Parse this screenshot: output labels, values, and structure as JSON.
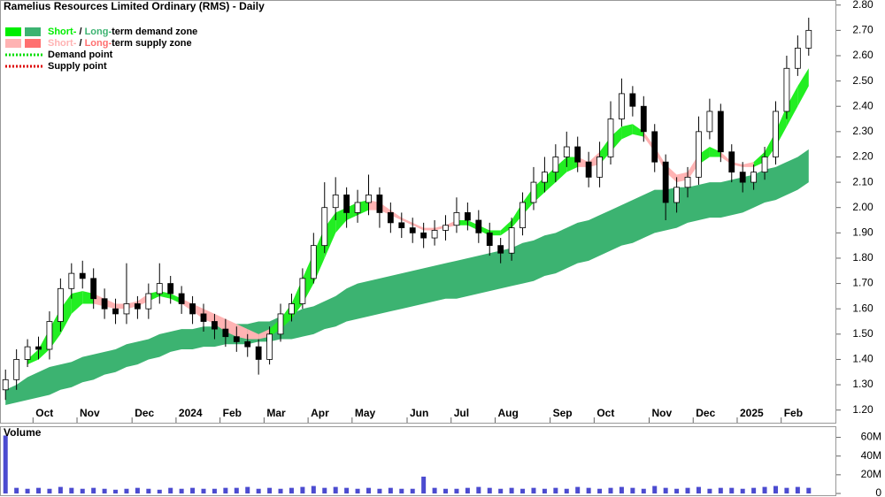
{
  "chart_data": [
    {
      "type": "candlestick",
      "title": "Ramelius Resources Limited Ordinary (RMS) - Daily",
      "categories": [
        null,
        null,
        null,
        "Oct",
        null,
        null,
        null,
        "Nov",
        null,
        null,
        null,
        null,
        "Dec",
        null,
        null,
        null,
        "2024",
        null,
        null,
        null,
        "Feb",
        null,
        null,
        null,
        "Mar",
        null,
        null,
        null,
        "Apr",
        null,
        null,
        null,
        "May",
        null,
        null,
        null,
        null,
        "Jun",
        null,
        null,
        null,
        "Jul",
        null,
        null,
        null,
        "Aug",
        null,
        null,
        null,
        null,
        "Sep",
        null,
        null,
        null,
        "Oct",
        null,
        null,
        null,
        null,
        "Nov",
        null,
        null,
        null,
        "Dec",
        null,
        null,
        null,
        "2025",
        null,
        null,
        null,
        "Feb",
        null,
        null
      ],
      "open": [
        1.28,
        1.32,
        1.4,
        1.45,
        1.44,
        1.55,
        1.68,
        1.74,
        1.72,
        1.64,
        1.6,
        1.58,
        1.62,
        1.6,
        1.66,
        1.7,
        1.66,
        1.62,
        1.58,
        1.55,
        1.52,
        1.49,
        1.47,
        1.45,
        1.4,
        1.5,
        1.58,
        1.62,
        1.72,
        1.85,
        2.0,
        2.05,
        1.98,
        2.02,
        2.05,
        1.98,
        1.94,
        1.92,
        1.9,
        1.88,
        1.91,
        1.93,
        1.98,
        1.95,
        1.9,
        1.85,
        1.82,
        1.92,
        2.02,
        2.1,
        2.14,
        2.2,
        2.24,
        2.18,
        2.12,
        2.2,
        2.35,
        2.45,
        2.4,
        2.3,
        2.18,
        2.02,
        2.08,
        2.12,
        2.3,
        2.38,
        2.22,
        2.14,
        2.1,
        2.14,
        2.2,
        2.38,
        2.55,
        2.63
      ],
      "high": [
        1.36,
        1.44,
        1.48,
        1.49,
        1.59,
        1.72,
        1.78,
        1.79,
        1.76,
        1.68,
        1.64,
        1.78,
        1.65,
        1.7,
        1.78,
        1.73,
        1.69,
        1.65,
        1.62,
        1.58,
        1.56,
        1.53,
        1.5,
        1.48,
        1.53,
        1.62,
        1.66,
        1.76,
        1.9,
        2.1,
        2.12,
        2.08,
        2.07,
        2.13,
        2.08,
        2.02,
        1.98,
        1.96,
        1.94,
        1.95,
        1.97,
        2.04,
        2.02,
        1.99,
        1.94,
        1.88,
        1.96,
        2.06,
        2.16,
        2.2,
        2.25,
        2.3,
        2.28,
        2.22,
        2.26,
        2.42,
        2.51,
        2.48,
        2.44,
        2.33,
        2.21,
        2.12,
        2.16,
        2.36,
        2.43,
        2.41,
        2.25,
        2.18,
        2.17,
        2.24,
        2.42,
        2.6,
        2.68,
        2.75
      ],
      "low": [
        1.24,
        1.28,
        1.37,
        1.4,
        1.4,
        1.51,
        1.64,
        1.68,
        1.6,
        1.56,
        1.54,
        1.54,
        1.56,
        1.56,
        1.62,
        1.62,
        1.58,
        1.54,
        1.51,
        1.48,
        1.45,
        1.43,
        1.41,
        1.34,
        1.38,
        1.47,
        1.55,
        1.6,
        1.7,
        1.82,
        1.95,
        1.92,
        1.94,
        1.97,
        1.92,
        1.9,
        1.88,
        1.86,
        1.84,
        1.85,
        1.87,
        1.9,
        1.91,
        1.86,
        1.81,
        1.78,
        1.79,
        1.89,
        1.99,
        2.06,
        2.1,
        2.16,
        2.14,
        2.08,
        2.08,
        2.17,
        2.32,
        2.36,
        2.26,
        2.14,
        1.95,
        1.98,
        2.04,
        2.09,
        2.27,
        2.18,
        2.1,
        2.06,
        2.07,
        2.11,
        2.17,
        2.35,
        2.52,
        2.6
      ],
      "close": [
        1.32,
        1.4,
        1.45,
        1.44,
        1.55,
        1.68,
        1.74,
        1.72,
        1.64,
        1.6,
        1.58,
        1.62,
        1.6,
        1.66,
        1.7,
        1.66,
        1.62,
        1.58,
        1.55,
        1.52,
        1.49,
        1.47,
        1.45,
        1.4,
        1.5,
        1.58,
        1.62,
        1.72,
        1.85,
        2.0,
        2.05,
        1.98,
        2.02,
        2.05,
        1.98,
        1.94,
        1.92,
        1.9,
        1.88,
        1.91,
        1.93,
        1.98,
        1.95,
        1.9,
        1.85,
        1.82,
        1.92,
        2.02,
        2.1,
        2.14,
        2.2,
        2.24,
        2.18,
        2.12,
        2.2,
        2.35,
        2.45,
        2.4,
        2.3,
        2.18,
        2.02,
        2.08,
        2.12,
        2.3,
        2.38,
        2.22,
        2.14,
        2.1,
        2.14,
        2.2,
        2.38,
        2.55,
        2.63,
        2.7
      ],
      "up_color": "#ffffff",
      "down_color": "#000000",
      "long_zone": {
        "color": "#3cb371",
        "upper": [
          1.28,
          1.3,
          1.33,
          1.35,
          1.37,
          1.38,
          1.39,
          1.41,
          1.42,
          1.43,
          1.44,
          1.46,
          1.47,
          1.48,
          1.5,
          1.51,
          1.52,
          1.52,
          1.53,
          1.53,
          1.54,
          1.54,
          1.54,
          1.55,
          1.55,
          1.57,
          1.58,
          1.6,
          1.61,
          1.63,
          1.65,
          1.68,
          1.7,
          1.71,
          1.72,
          1.73,
          1.74,
          1.75,
          1.76,
          1.77,
          1.78,
          1.79,
          1.8,
          1.81,
          1.82,
          1.83,
          1.84,
          1.86,
          1.87,
          1.89,
          1.9,
          1.92,
          1.94,
          1.95,
          1.97,
          1.99,
          2.01,
          2.03,
          2.05,
          2.07,
          2.07,
          2.08,
          2.08,
          2.09,
          2.1,
          2.1,
          2.11,
          2.12,
          2.13,
          2.15,
          2.16,
          2.18,
          2.2,
          2.23
        ],
        "lower": [
          1.22,
          1.23,
          1.24,
          1.25,
          1.26,
          1.28,
          1.29,
          1.31,
          1.32,
          1.34,
          1.35,
          1.37,
          1.38,
          1.4,
          1.41,
          1.43,
          1.44,
          1.44,
          1.45,
          1.45,
          1.46,
          1.46,
          1.46,
          1.47,
          1.47,
          1.48,
          1.48,
          1.49,
          1.5,
          1.52,
          1.53,
          1.55,
          1.56,
          1.57,
          1.58,
          1.59,
          1.6,
          1.61,
          1.62,
          1.63,
          1.64,
          1.64,
          1.65,
          1.66,
          1.67,
          1.68,
          1.69,
          1.7,
          1.71,
          1.73,
          1.74,
          1.76,
          1.78,
          1.79,
          1.81,
          1.83,
          1.85,
          1.86,
          1.88,
          1.9,
          1.91,
          1.92,
          1.94,
          1.95,
          1.96,
          1.96,
          1.97,
          1.98,
          2.0,
          2.02,
          2.03,
          2.05,
          2.07,
          2.1
        ]
      },
      "short_zone": {
        "upper": [
          null,
          null,
          1.4,
          1.44,
          1.52,
          1.6,
          1.66,
          1.67,
          1.66,
          1.64,
          1.62,
          1.62,
          1.63,
          1.66,
          1.67,
          1.66,
          1.64,
          1.62,
          1.6,
          1.58,
          1.56,
          1.54,
          1.52,
          1.5,
          1.52,
          1.56,
          1.62,
          1.72,
          1.82,
          1.92,
          1.98,
          2.0,
          2.02,
          2.03,
          2.02,
          1.99,
          1.96,
          1.94,
          1.92,
          1.92,
          1.93,
          1.95,
          1.95,
          1.93,
          1.91,
          1.91,
          1.95,
          2.02,
          2.08,
          2.12,
          2.16,
          2.2,
          2.2,
          2.18,
          2.22,
          2.28,
          2.32,
          2.33,
          2.3,
          2.24,
          2.17,
          2.13,
          2.14,
          2.21,
          2.24,
          2.22,
          2.18,
          2.17,
          2.18,
          2.22,
          2.3,
          2.4,
          2.48,
          2.55
        ],
        "lower": [
          null,
          null,
          1.38,
          1.4,
          1.44,
          1.5,
          1.58,
          1.62,
          1.62,
          1.61,
          1.6,
          1.6,
          1.61,
          1.63,
          1.65,
          1.64,
          1.62,
          1.59,
          1.56,
          1.54,
          1.51,
          1.49,
          1.48,
          1.48,
          1.49,
          1.52,
          1.56,
          1.62,
          1.7,
          1.8,
          1.9,
          1.95,
          1.97,
          1.99,
          1.99,
          1.97,
          1.95,
          1.93,
          1.91,
          1.91,
          1.92,
          1.93,
          1.93,
          1.91,
          1.89,
          1.89,
          1.92,
          1.97,
          2.02,
          2.06,
          2.1,
          2.14,
          2.16,
          2.16,
          2.17,
          2.22,
          2.27,
          2.29,
          2.28,
          2.22,
          2.14,
          2.1,
          2.11,
          2.17,
          2.2,
          2.2,
          2.17,
          2.16,
          2.16,
          2.18,
          2.24,
          2.32,
          2.4,
          2.48
        ],
        "colors": [
          "#22ee22",
          "#22ee22",
          "#22ee22",
          "#22ee22",
          "#22ee22",
          "#22ee22",
          "#22ee22",
          "#22ee22",
          "#ffb3b3",
          "#ffb3b3",
          "#ffb3b3",
          "#ffb3b3",
          "#ffb3b3",
          "#22ee22",
          "#22ee22",
          "#22ee22",
          "#ffb3b3",
          "#ffb3b3",
          "#ffb3b3",
          "#ffb3b3",
          "#ffb3b3",
          "#ffb3b3",
          "#ffb3b3",
          "#ffb3b3",
          "#22ee22",
          "#22ee22",
          "#22ee22",
          "#22ee22",
          "#22ee22",
          "#22ee22",
          "#22ee22",
          "#22ee22",
          "#22ee22",
          "#ffb3b3",
          "#ffb3b3",
          "#ffb3b3",
          "#ffb3b3",
          "#ffb3b3",
          "#ffb3b3",
          "#ffb3b3",
          "#ffb3b3",
          "#22ee22",
          "#22ee22",
          "#22ee22",
          "#22ee22",
          "#22ee22",
          "#22ee22",
          "#22ee22",
          "#22ee22",
          "#22ee22",
          "#22ee22",
          "#22ee22",
          "#ffb3b3",
          "#ffb3b3",
          "#22ee22",
          "#22ee22",
          "#22ee22",
          "#22ee22",
          "#ffb3b3",
          "#ffb3b3",
          "#ffb3b3",
          "#ffb3b3",
          "#ffb3b3",
          "#22ee22",
          "#22ee22",
          "#ffb3b3",
          "#ffb3b3",
          "#ffb3b3",
          "#22ee22",
          "#22ee22",
          "#22ee22",
          "#22ee22",
          "#22ee22",
          "#22ee22"
        ]
      },
      "legend": [
        {
          "parts": [
            "Short-",
            " / ",
            "Long-",
            "term demand zone"
          ],
          "colors": [
            "#00ee00",
            "#3cb371"
          ]
        },
        {
          "parts": [
            "Short-",
            " / ",
            "Long-",
            "term supply zone"
          ],
          "colors": [
            "#ffb3b3",
            "#ff7070"
          ]
        },
        {
          "parts": [
            "Demand point"
          ],
          "colors": [
            "#00dd00"
          ]
        },
        {
          "parts": [
            "Supply point"
          ],
          "colors": [
            "#dd0000"
          ]
        }
      ],
      "ylim": [
        1.15,
        2.82
      ],
      "yticks": [
        {
          "value": 1.2,
          "label": "1.20"
        },
        {
          "value": 1.3,
          "label": "1.30"
        },
        {
          "value": 1.4,
          "label": "1.40"
        },
        {
          "value": 1.5,
          "label": "1.50"
        },
        {
          "value": 1.6,
          "label": "1.60"
        },
        {
          "value": 1.7,
          "label": "1.70"
        },
        {
          "value": 1.8,
          "label": "1.80"
        },
        {
          "value": 1.9,
          "label": "1.90"
        },
        {
          "value": 2.0,
          "label": "2.00"
        },
        {
          "value": 2.1,
          "label": "2.10"
        },
        {
          "value": 2.2,
          "label": "2.20"
        },
        {
          "value": 2.3,
          "label": "2.30"
        },
        {
          "value": 2.4,
          "label": "2.40"
        },
        {
          "value": 2.5,
          "label": "2.50"
        },
        {
          "value": 2.6,
          "label": "2.60"
        },
        {
          "value": 2.7,
          "label": "2.70"
        },
        {
          "value": 2.8,
          "label": "2.80"
        }
      ]
    },
    {
      "type": "bar",
      "title": "Volume",
      "color": "#4b4bd0",
      "values": [
        62,
        6,
        5,
        6,
        5,
        7,
        6,
        5,
        6,
        5,
        4,
        5,
        6,
        5,
        4,
        6,
        5,
        6,
        5,
        5,
        6,
        6,
        7,
        5,
        6,
        5,
        6,
        7,
        8,
        6,
        7,
        6,
        5,
        6,
        5,
        6,
        5,
        5,
        18,
        6,
        5,
        5,
        6,
        7,
        6,
        5,
        6,
        5,
        6,
        5,
        6,
        5,
        7,
        6,
        5,
        6,
        7,
        6,
        5,
        8,
        6,
        5,
        6,
        7,
        5,
        6,
        6,
        5,
        6,
        7,
        8,
        6,
        7,
        6
      ],
      "ylim": [
        0,
        70
      ],
      "yticks": [
        0,
        {
          "value": 20,
          "label": "20M"
        },
        {
          "value": 40,
          "label": "40M"
        },
        {
          "value": 60,
          "label": "60M"
        }
      ]
    }
  ]
}
